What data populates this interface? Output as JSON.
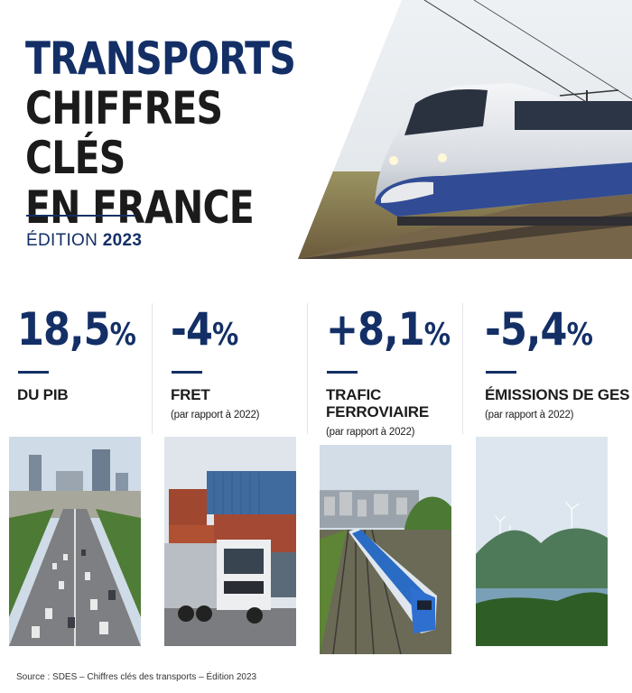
{
  "header": {
    "title_line1": "TRANSPORTS",
    "title_line2": "CHIFFRES CLÉS",
    "title_line3": "EN FRANCE",
    "edition_label": "ÉDITION",
    "edition_year": "2023"
  },
  "stats": [
    {
      "value": "18,5",
      "unit": "%",
      "label_line1": "DU PIB",
      "label_line2": "",
      "sub": "",
      "image": "paris-avenue-traffic"
    },
    {
      "value": "-4",
      "unit": "%",
      "label_line1": "FRET",
      "label_line2": "",
      "sub": "(par rapport à 2022)",
      "image": "freight-truck-containers"
    },
    {
      "value": "+8,1",
      "unit": "%",
      "label_line1": "TRAFIC",
      "label_line2": "FERROVIAIRE",
      "sub": "(par rapport à 2022)",
      "image": "commuter-train"
    },
    {
      "value": "-5,4",
      "unit": "%",
      "label_line1": "ÉMISSIONS DE GES",
      "label_line2": "",
      "sub": "(par rapport à 2022)",
      "image": "wind-turbines-hills"
    }
  ],
  "footer": {
    "source": "Source : SDES – Chiffres clés des transports – Édition 2023"
  },
  "colors": {
    "accent": "#132f66",
    "text": "#1c1c1c",
    "divider": "#e1e4ea"
  }
}
